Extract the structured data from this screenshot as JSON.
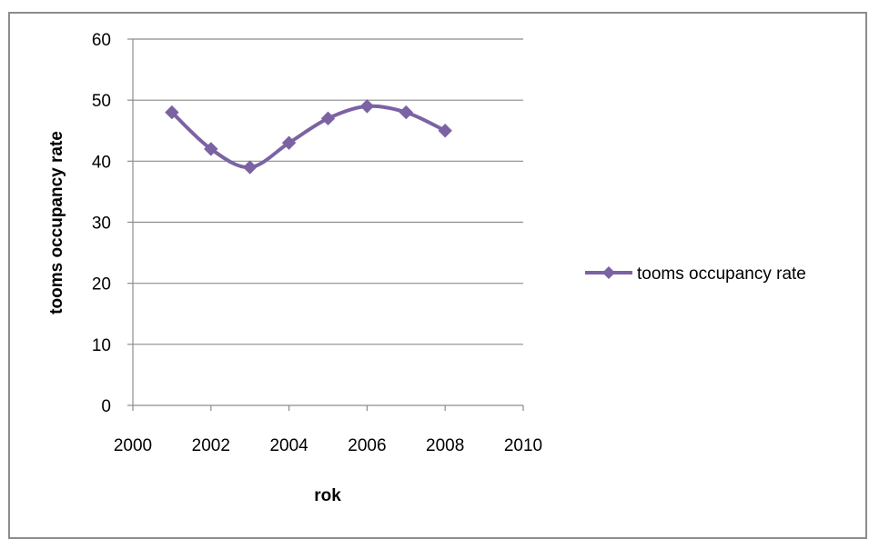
{
  "chart_data": {
    "type": "scatter",
    "title": "",
    "xlabel": "rok",
    "ylabel": "tooms occupancy rate",
    "xlim": [
      2000,
      2010
    ],
    "ylim": [
      0,
      60
    ],
    "x_ticks": [
      2000,
      2002,
      2004,
      2006,
      2008,
      2010
    ],
    "y_ticks": [
      0,
      10,
      20,
      30,
      40,
      50,
      60
    ],
    "grid": "horizontal",
    "legend_position": "right",
    "smooth_line": true,
    "marker": "diamond",
    "series": [
      {
        "name": "tooms occupancy rate",
        "color": "#7b63a3",
        "x": [
          2001,
          2002,
          2003,
          2004,
          2005,
          2006,
          2007,
          2008
        ],
        "y": [
          48,
          42,
          39,
          43,
          47,
          49,
          48,
          45
        ]
      }
    ]
  }
}
